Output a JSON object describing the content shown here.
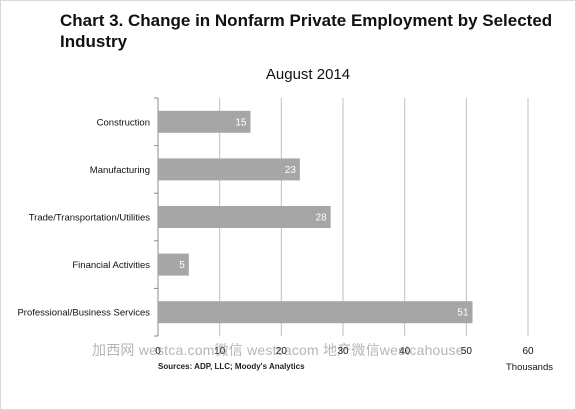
{
  "title": "Chart 3. Change in Nonfarm Private Employment by Selected Industry",
  "subtitle": "August 2014",
  "source": "Sources: ADP, LLC; Moody's Analytics",
  "unit_label": "Thousands",
  "watermark": "加西网 westca.com微信 westcacom 地产微信westcahouse",
  "colors": {
    "bar": "#a6a6a6",
    "grid": "#bfbfbf",
    "axis": "#8c8c8c",
    "value_label": "#ffffff"
  },
  "chart_data": {
    "type": "bar",
    "orientation": "horizontal",
    "title": "Chart 3. Change in Nonfarm Private Employment by Selected Industry",
    "subtitle": "August 2014",
    "xlabel": "Thousands",
    "ylabel": "",
    "categories": [
      "Construction",
      "Manufacturing",
      "Trade/Transportation/Utilities",
      "Financial Activities",
      "Professional/Business Services"
    ],
    "values": [
      15,
      23,
      28,
      5,
      51
    ],
    "xlim": [
      0,
      60
    ],
    "xticks": [
      0,
      10,
      20,
      30,
      40,
      50,
      60
    ],
    "grid": true,
    "data_labels": true
  }
}
